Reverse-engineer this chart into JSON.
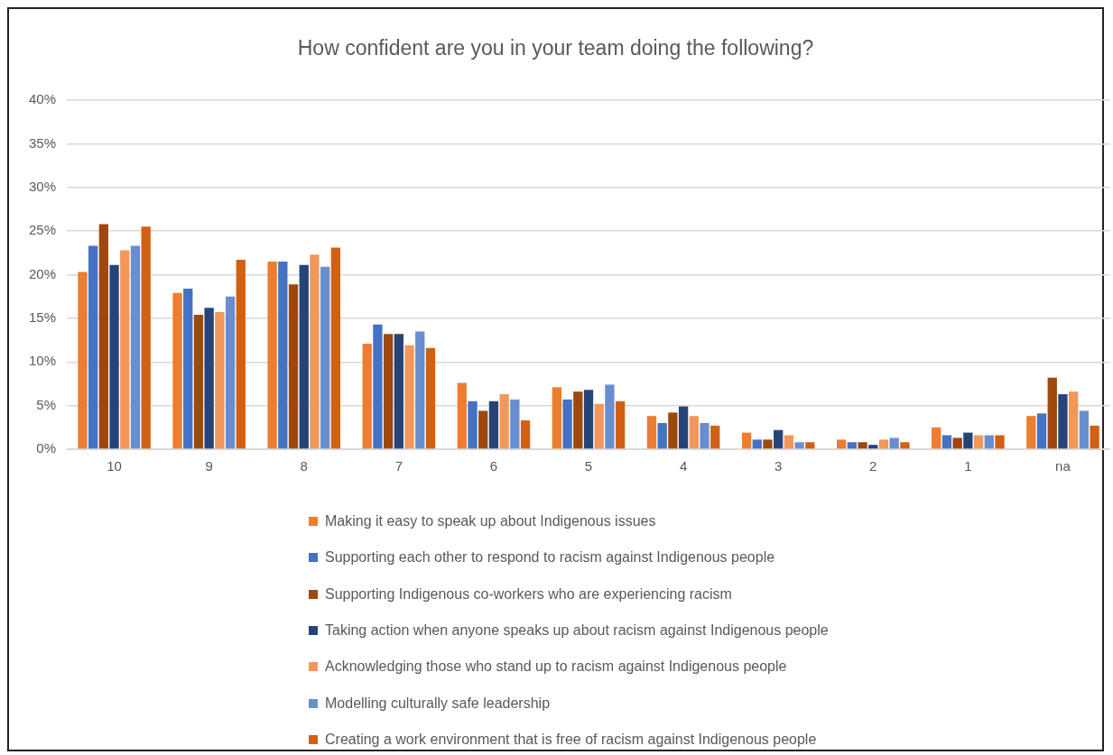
{
  "chart_data": {
    "type": "bar",
    "title": "How confident are you in your team doing the following?",
    "categories": [
      "10",
      "9",
      "8",
      "7",
      "6",
      "5",
      "4",
      "3",
      "2",
      "1",
      "na"
    ],
    "series": [
      {
        "name": "Making it easy to speak up about Indigenous issues",
        "color": "#ed7d31",
        "values": [
          20.3,
          17.9,
          21.5,
          12.1,
          7.6,
          7.1,
          3.8,
          1.9,
          1.1,
          2.5,
          3.8
        ]
      },
      {
        "name": "Supporting each other to respond to racism against Indigenous people",
        "color": "#4472c4",
        "values": [
          23.3,
          18.4,
          21.5,
          14.3,
          5.5,
          5.7,
          3.0,
          1.1,
          0.8,
          1.6,
          4.1
        ]
      },
      {
        "name": "Supporting Indigenous co-workers who are experiencing racism",
        "color": "#9e480e",
        "values": [
          25.8,
          15.4,
          18.9,
          13.2,
          4.4,
          6.6,
          4.2,
          1.1,
          0.8,
          1.3,
          8.2
        ]
      },
      {
        "name": "Taking action when anyone speaks up about racism against Indigenous people",
        "color": "#264478",
        "values": [
          21.1,
          16.2,
          21.1,
          13.2,
          5.5,
          6.8,
          4.9,
          2.2,
          0.5,
          1.9,
          6.3
        ]
      },
      {
        "name": "Acknowledging those who stand up to racism against Indigenous people",
        "color": "#f1975a",
        "values": [
          22.8,
          15.7,
          22.3,
          11.9,
          6.3,
          5.2,
          3.8,
          1.6,
          1.1,
          1.6,
          6.6
        ]
      },
      {
        "name": "Modelling culturally safe leadership",
        "color": "#698ed0",
        "values": [
          23.3,
          17.5,
          20.9,
          13.5,
          5.7,
          7.4,
          3.0,
          0.8,
          1.3,
          1.6,
          4.4
        ]
      },
      {
        "name": "Creating a work environment that is free of racism against Indigenous people",
        "color": "#d26012",
        "values": [
          25.5,
          21.7,
          23.1,
          11.6,
          3.3,
          5.5,
          2.7,
          0.8,
          0.8,
          1.6,
          2.7
        ]
      }
    ],
    "ylim": [
      0,
      40
    ],
    "yticks": [
      {
        "value": 0,
        "label": "0%"
      },
      {
        "value": 5,
        "label": "5%"
      },
      {
        "value": 10,
        "label": "10%"
      },
      {
        "value": 15,
        "label": "15%"
      },
      {
        "value": 20,
        "label": "20%"
      },
      {
        "value": 25,
        "label": "25%"
      },
      {
        "value": 30,
        "label": "30%"
      },
      {
        "value": 35,
        "label": "35%"
      },
      {
        "value": 40,
        "label": "40%"
      }
    ],
    "grid": "y",
    "legend": "bottom"
  }
}
